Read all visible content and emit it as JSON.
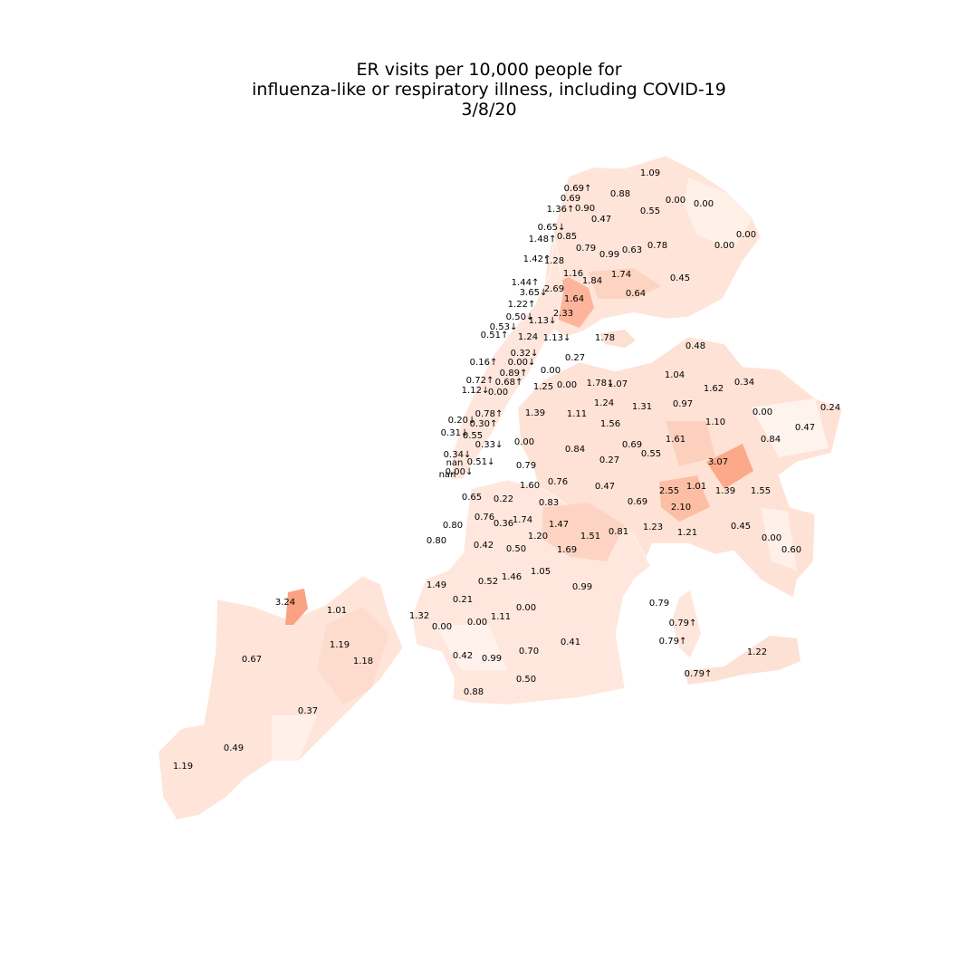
{
  "title": {
    "line1": "ER visits per 10,000 people for",
    "line2": "influenza-like or respiratory illness, including COVID-19",
    "line3": "3/8/20"
  },
  "colors": {
    "low": "#fff5f0",
    "high": "#fc9272"
  },
  "chart_data": {
    "type": "choropleth",
    "labels": [
      "1.09",
      "0.69↑",
      "0.88",
      "0.69",
      "1.36↑",
      "0.90",
      "0.00",
      "0.00",
      "0.55",
      "0.47",
      "0.65↓",
      "0.85",
      "1.48↑",
      "0.79",
      "0.99",
      "0.63",
      "0.78",
      "0.00",
      "0.00",
      "1.42↑",
      "1.28",
      "1.16",
      "1.84",
      "1.74",
      "0.45",
      "1.44↑",
      "2.69",
      "3.65↓",
      "1.64",
      "0.64",
      "1.22↑",
      "2.33",
      "0.50↓",
      "1.13↓",
      "0.53↓",
      "0.51↑",
      "1.24",
      "1.13↓",
      "1.78",
      "0.48",
      "0.32↓",
      "0.16↑",
      "0.00↓",
      "0.89↑",
      "0.00",
      "0.27",
      "0.72↑",
      "0.68↑",
      "1.25",
      "0.00",
      "1.78↓",
      "1.07",
      "1.04",
      "1.62",
      "0.34",
      "1.12↓",
      "0.00",
      "1.24",
      "1.31",
      "0.97",
      "0.78↑",
      "1.39",
      "1.11",
      "0.00",
      "0.24",
      "0.20↓",
      "0.30↑",
      "1.56",
      "1.10",
      "0.47",
      "0.31↓",
      "0.55",
      "0.69",
      "1.61",
      "0.84",
      "0.33↓",
      "0.00",
      "0.84",
      "0.34↓",
      "0.55",
      "0.27",
      "nan",
      "0.51↓",
      "0.79",
      "3.07",
      "nan",
      "0.00↓",
      "1.60",
      "0.76",
      "0.47",
      "2.55",
      "1.01",
      "1.39",
      "1.55",
      "0.65",
      "0.22",
      "0.83",
      "0.69",
      "2.10",
      "0.76",
      "0.36",
      "1.74",
      "1.47",
      "0.80",
      "1.23",
      "1.21",
      "0.45",
      "1.20",
      "1.51",
      "0.81",
      "0.00",
      "0.80",
      "0.42",
      "0.50",
      "1.69",
      "0.60",
      "1.05",
      "0.52",
      "1.46",
      "1.49",
      "0.99",
      "0.21",
      "3.24",
      "0.00",
      "0.79",
      "1.01",
      "1.32",
      "1.11",
      "0.79↑",
      "0.00",
      "0.00",
      "1.19",
      "0.41",
      "0.79↑",
      "0.70",
      "0.67",
      "1.18",
      "0.42",
      "0.99",
      "1.22",
      "0.50",
      "0.79↑",
      "0.88",
      "0.37",
      "0.49",
      "1.19"
    ]
  }
}
